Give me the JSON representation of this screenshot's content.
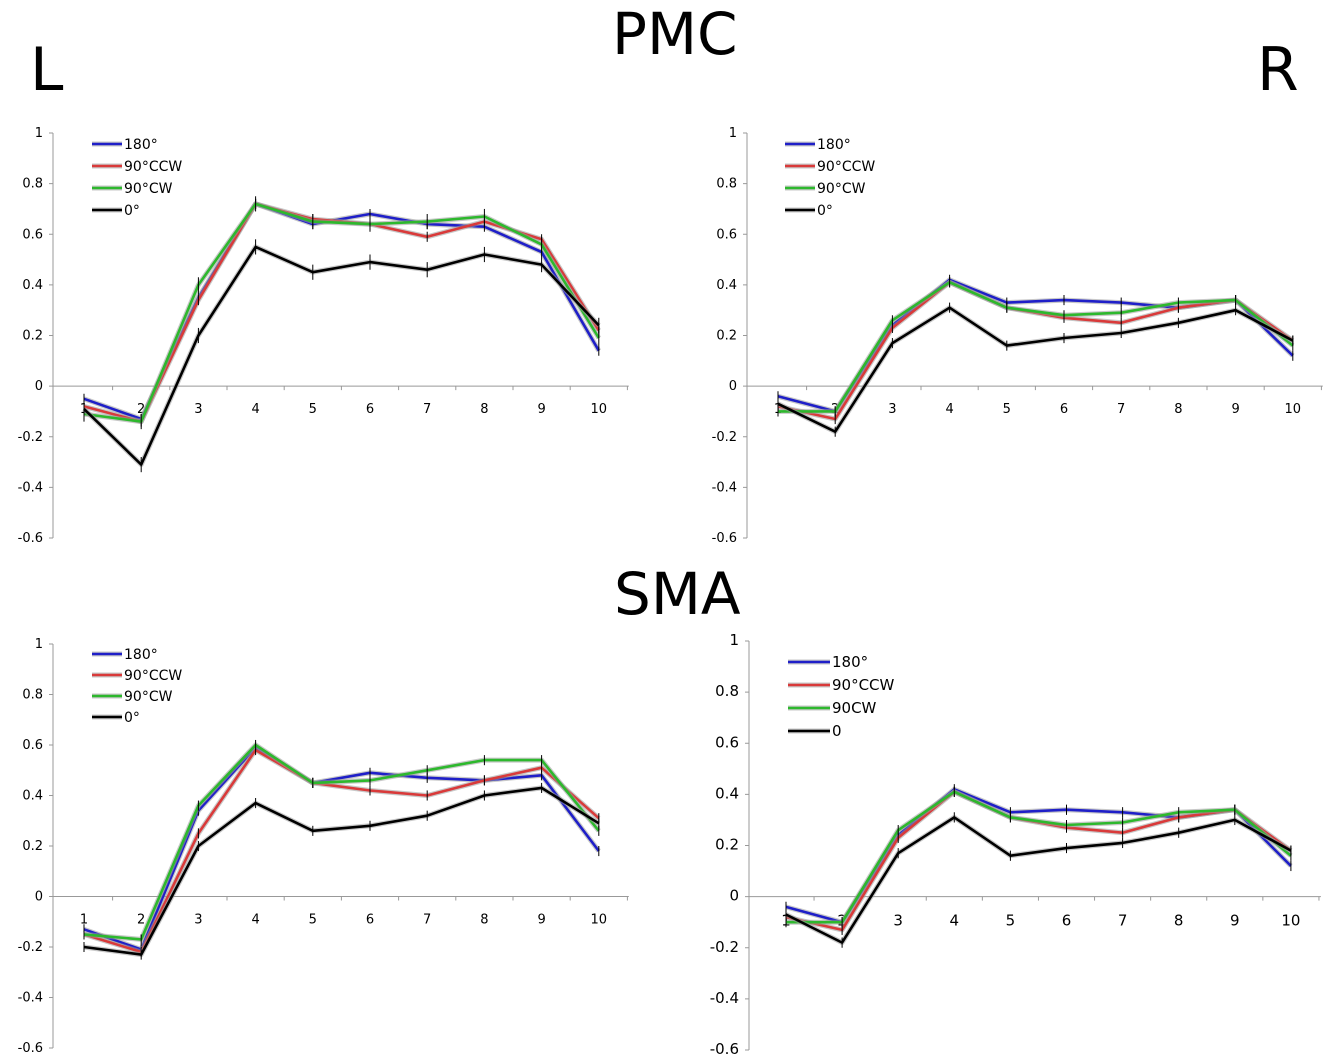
{
  "headings": {
    "region_top": "PMC",
    "region_bottom": "SMA",
    "side_left": "L",
    "side_right": "R"
  },
  "chart_data": [
    {
      "type": "line",
      "x": [
        1,
        2,
        3,
        4,
        5,
        6,
        7,
        8,
        9,
        10
      ],
      "ylim": [
        -0.6,
        1
      ],
      "yticks": [
        "1",
        "0.8",
        "0.6",
        "0.4",
        "0.2",
        "0",
        "-0.2",
        "-0.4",
        "-0.6"
      ],
      "xticks": [
        "1",
        "2",
        "3",
        "4",
        "5",
        "6",
        "7",
        "8",
        "9",
        "10"
      ],
      "legend_position": "top-left",
      "series": [
        {
          "name": "180°",
          "color": "#1f1fc8",
          "values": [
            -0.05,
            -0.13,
            0.35,
            0.72,
            0.64,
            0.68,
            0.64,
            0.63,
            0.53,
            0.14
          ],
          "err": 0.02
        },
        {
          "name": "90°CCW",
          "color": "#d93a3a",
          "values": [
            -0.08,
            -0.14,
            0.34,
            0.72,
            0.66,
            0.64,
            0.59,
            0.65,
            0.58,
            0.22
          ],
          "err": 0.02
        },
        {
          "name": "90°CW",
          "color": "#2db82d",
          "values": [
            -0.11,
            -0.14,
            0.4,
            0.72,
            0.65,
            0.64,
            0.65,
            0.67,
            0.56,
            0.19
          ],
          "err": 0.03
        },
        {
          "name": "0°",
          "color": "#000000",
          "values": [
            -0.09,
            -0.31,
            0.2,
            0.55,
            0.45,
            0.49,
            0.46,
            0.52,
            0.48,
            0.24
          ],
          "err": 0.03
        }
      ]
    },
    {
      "type": "line",
      "x": [
        1,
        2,
        3,
        4,
        5,
        6,
        7,
        8,
        9,
        10
      ],
      "ylim": [
        -0.6,
        1
      ],
      "yticks": [
        "1",
        "0.8",
        "0.6",
        "0.4",
        "0.2",
        "0",
        "-0.2",
        "-0.4",
        "-0.6"
      ],
      "xticks": [
        "1",
        "2",
        "3",
        "4",
        "5",
        "6",
        "7",
        "8",
        "9",
        "10"
      ],
      "legend_position": "top-left",
      "series": [
        {
          "name": "180°",
          "color": "#1f1fc8",
          "values": [
            -0.04,
            -0.1,
            0.24,
            0.42,
            0.33,
            0.34,
            0.33,
            0.31,
            0.34,
            0.12
          ],
          "err": 0.02
        },
        {
          "name": "90°CCW",
          "color": "#d93a3a",
          "values": [
            -0.08,
            -0.13,
            0.23,
            0.41,
            0.31,
            0.27,
            0.25,
            0.31,
            0.34,
            0.18
          ],
          "err": 0.02
        },
        {
          "name": "90°CW",
          "color": "#2db82d",
          "values": [
            -0.1,
            -0.1,
            0.26,
            0.41,
            0.31,
            0.28,
            0.29,
            0.33,
            0.34,
            0.16
          ],
          "err": 0.02
        },
        {
          "name": "0°",
          "color": "#000000",
          "values": [
            -0.07,
            -0.18,
            0.17,
            0.31,
            0.16,
            0.19,
            0.21,
            0.25,
            0.3,
            0.18
          ],
          "err": 0.02
        }
      ]
    },
    {
      "type": "line",
      "x": [
        1,
        2,
        3,
        4,
        5,
        6,
        7,
        8,
        9,
        10
      ],
      "ylim": [
        -0.6,
        1
      ],
      "yticks": [
        "1",
        "0.8",
        "0.6",
        "0.4",
        "0.2",
        "0",
        "-0.2",
        "-0.4",
        "-0.6"
      ],
      "xticks": [
        "1",
        "2",
        "3",
        "4",
        "5",
        "6",
        "7",
        "8",
        "9",
        "10"
      ],
      "legend_position": "top-left",
      "series": [
        {
          "name": "180°",
          "color": "#1f1fc8",
          "values": [
            -0.13,
            -0.21,
            0.34,
            0.59,
            0.45,
            0.49,
            0.47,
            0.46,
            0.48,
            0.18
          ],
          "err": 0.02
        },
        {
          "name": "90°CCW",
          "color": "#d93a3a",
          "values": [
            -0.15,
            -0.22,
            0.25,
            0.58,
            0.45,
            0.42,
            0.4,
            0.46,
            0.51,
            0.31
          ],
          "err": 0.02
        },
        {
          "name": "90°CW",
          "color": "#2db82d",
          "values": [
            -0.15,
            -0.17,
            0.36,
            0.6,
            0.45,
            0.46,
            0.5,
            0.54,
            0.54,
            0.26
          ],
          "err": 0.02
        },
        {
          "name": "0°",
          "color": "#000000",
          "values": [
            -0.2,
            -0.23,
            0.2,
            0.37,
            0.26,
            0.28,
            0.32,
            0.4,
            0.43,
            0.29
          ],
          "err": 0.02
        }
      ]
    },
    {
      "type": "line",
      "x": [
        1,
        2,
        3,
        4,
        5,
        6,
        7,
        8,
        9,
        10
      ],
      "ylim": [
        -0.6,
        1
      ],
      "yticks": [
        "1",
        "0.8",
        "0.6",
        "0.4",
        "0.2",
        "0",
        "-0.2",
        "-0.4",
        "-0.6"
      ],
      "xticks": [
        "1",
        "2",
        "3",
        "4",
        "5",
        "6",
        "7",
        "8",
        "9",
        "10"
      ],
      "legend_position": "top-left",
      "series": [
        {
          "name": "180°",
          "color": "#1f1fc8",
          "values": [
            -0.04,
            -0.1,
            0.24,
            0.42,
            0.33,
            0.34,
            0.33,
            0.31,
            0.34,
            0.12
          ],
          "err": 0.02
        },
        {
          "name": "90°CCW",
          "color": "#d93a3a",
          "values": [
            -0.08,
            -0.13,
            0.23,
            0.41,
            0.31,
            0.27,
            0.25,
            0.31,
            0.34,
            0.18
          ],
          "err": 0.02
        },
        {
          "name": "90CW",
          "color": "#2db82d",
          "values": [
            -0.1,
            -0.1,
            0.26,
            0.41,
            0.31,
            0.28,
            0.29,
            0.33,
            0.34,
            0.16
          ],
          "err": 0.02
        },
        {
          "name": "0",
          "color": "#000000",
          "values": [
            -0.07,
            -0.18,
            0.17,
            0.31,
            0.16,
            0.19,
            0.21,
            0.25,
            0.3,
            0.18
          ],
          "err": 0.02
        }
      ]
    }
  ]
}
